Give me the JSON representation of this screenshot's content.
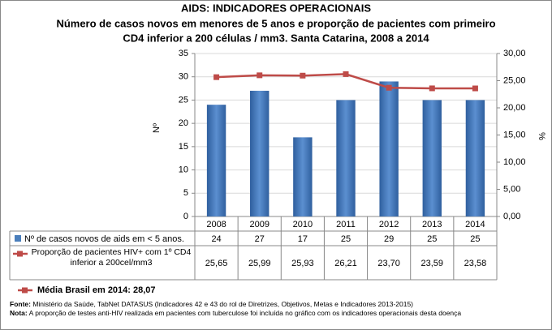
{
  "chart_data": {
    "type": "bar-line",
    "title": "AIDS: INDICADORES OPERACIONAIS",
    "subtitle": [
      "Número de casos novos em menores de 5 anos e proporção de pacientes com primeiro",
      "CD4 inferior a 200 células / mm3. Santa Catarina, 2008 a 2014"
    ],
    "y_label": "Nº",
    "y2_label": "%",
    "categories": [
      "2008",
      "2009",
      "2010",
      "2011",
      "2012",
      "2013",
      "2014"
    ],
    "series": [
      {
        "name": "Nº de casos novos de aids em < 5 anos.",
        "type": "bar",
        "color": "#4a7ebb",
        "values": [
          24,
          27,
          17,
          25,
          29,
          25,
          25
        ]
      },
      {
        "name": "Proporção de pacientes HIV+ com 1º CD4 inferior a 200cel/mm3",
        "type": "line",
        "axis": "y2",
        "color": "#be4b48",
        "values": [
          25.65,
          25.99,
          25.93,
          26.21,
          23.7,
          23.59,
          23.58
        ],
        "value_labels": [
          "25,65",
          "25,99",
          "25,93",
          "26,21",
          "23,70",
          "23,59",
          "23,58"
        ]
      }
    ],
    "ylim": [
      0,
      35
    ],
    "yticks": [
      0,
      5,
      10,
      15,
      20,
      25,
      30,
      35
    ],
    "y2lim": [
      0,
      30
    ],
    "y2ticks": [
      {
        "value": 0,
        "label": "0,00"
      },
      {
        "value": 5,
        "label": "5,00"
      },
      {
        "value": 10,
        "label": "10,00"
      },
      {
        "value": 15,
        "label": "15,00"
      },
      {
        "value": 20,
        "label": "20,00"
      },
      {
        "value": 25,
        "label": "25,00"
      },
      {
        "value": 30,
        "label": "30,00"
      }
    ],
    "grid": true,
    "annotation": "Média Brasil em 2014: 28,07",
    "footnotes": [
      {
        "label": "Fonte:",
        "text": " Ministério da Saúde, TabNet DATASUS (Indicadores 42 e 43 do rol de Diretrizes, Objetivos, Metas e Indicadores 2013-2015)"
      },
      {
        "label": "Nota:",
        "text": " A proporção de testes anti-HIV realizada em pacientes com tuberculose foi incluída no gráfico com os indicadores operacionais desta doença"
      }
    ]
  }
}
